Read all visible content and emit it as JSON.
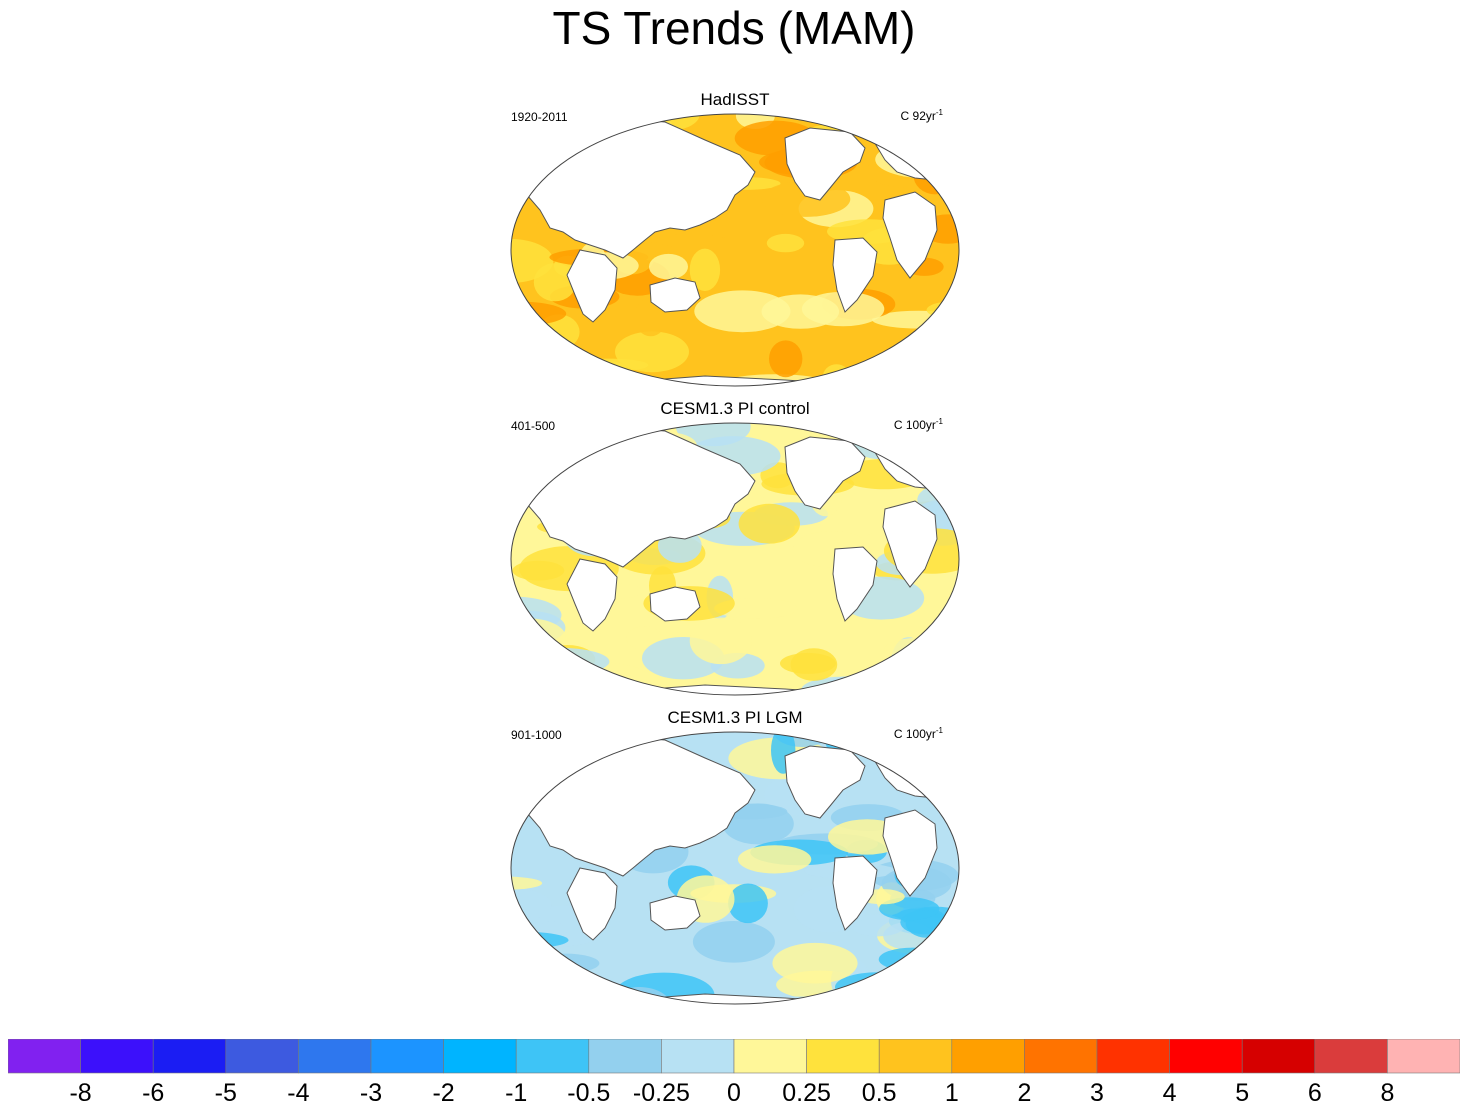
{
  "title": "TS Trends (MAM)",
  "panels": [
    {
      "title": "HadISST",
      "period": "1920-2011",
      "units_prefix": "C 92yr",
      "units_exp": "-1",
      "regime": "warm"
    },
    {
      "title": "CESM1.3 PI control",
      "period": "401-500",
      "units_prefix": "C 100yr",
      "units_exp": "-1",
      "regime": "mixed"
    },
    {
      "title": "CESM1.3 PI LGM",
      "period": "901-1000",
      "units_prefix": "C 100yr",
      "units_exp": "-1",
      "regime": "cool"
    }
  ],
  "colorbar": {
    "colors": [
      "#8121f0",
      "#3c10fb",
      "#1b1df3",
      "#3d5ae0",
      "#2e77ee",
      "#1c94ff",
      "#00b4ff",
      "#3ec4f6",
      "#93d0ee",
      "#b7e1f3",
      "#fff799",
      "#ffe23c",
      "#ffc31e",
      "#ff9f00",
      "#ff7300",
      "#ff3200",
      "#ff0000",
      "#d60000",
      "#da3c3c",
      "#ffb3b3"
    ],
    "labels": [
      "-8",
      "-6",
      "-5",
      "-4",
      "-3",
      "-2",
      "-1",
      "-0.5",
      "-0.25",
      "0",
      "0.25",
      "0.5",
      "1",
      "2",
      "3",
      "4",
      "5",
      "6",
      "8"
    ]
  }
}
